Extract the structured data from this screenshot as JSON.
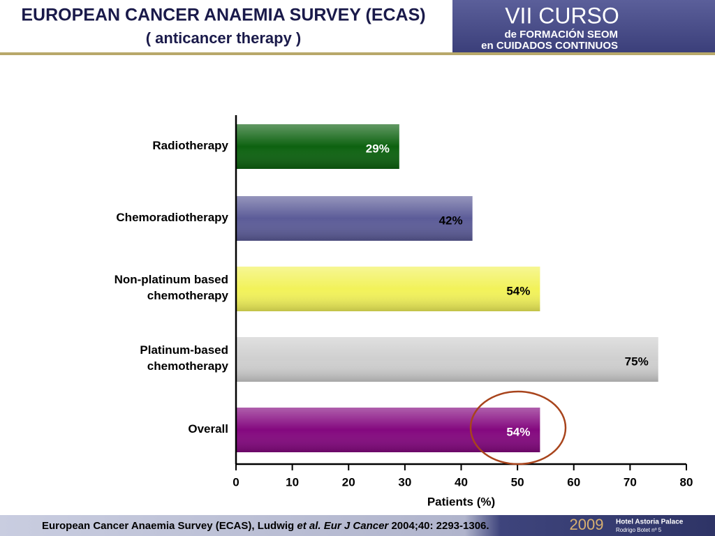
{
  "header": {
    "title": "EUROPEAN CANCER ANAEMIA SURVEY (ECAS)",
    "subtitle": "( anticancer therapy )",
    "banner": [
      "VII CURSO",
      "de FORMACIÓN SEOM",
      "en CUIDADOS CONTINUOS"
    ]
  },
  "chart_data": {
    "type": "bar",
    "orientation": "horizontal",
    "categories": [
      "Radiotherapy",
      "Chemoradiotherapy",
      "Non-platinum based chemotherapy",
      "Platinum-based chemotherapy",
      "Overall"
    ],
    "values": [
      29,
      42,
      54,
      75,
      54
    ],
    "value_labels": [
      "29%",
      "42%",
      "54%",
      "75%",
      "54%"
    ],
    "colors": [
      "#0d6210",
      "#5c5c98",
      "#f2f25a",
      "#cfcfcf",
      "#84087f"
    ],
    "label_colors": [
      "#ffffff",
      "#000000",
      "#000000",
      "#000000",
      "#ffffff"
    ],
    "xlabel": "Patients (%)",
    "xlim": [
      0,
      80
    ],
    "xticks": [
      0,
      10,
      20,
      30,
      40,
      50,
      60,
      70,
      80
    ]
  },
  "footer": {
    "citation": [
      "European Cancer Anaemia Survey (ECAS), Ludwig ",
      "et al. Eur J Cancer",
      " 2004;40: 2293-1306."
    ],
    "year": "2009",
    "venue": [
      "Hotel Astoria Palace",
      "Rodrigo Botet nº 5"
    ]
  }
}
